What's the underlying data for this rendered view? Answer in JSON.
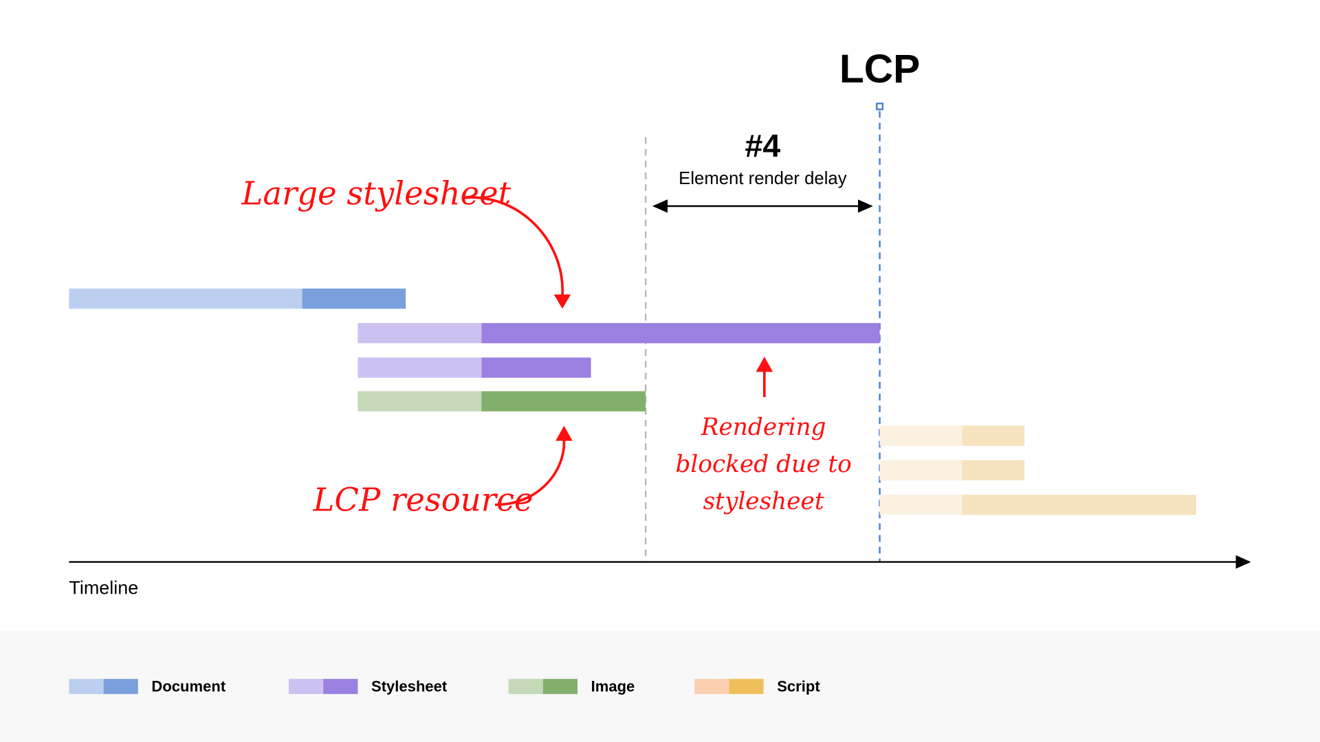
{
  "milestone": {
    "label": "LCP"
  },
  "phase": {
    "number": "#4",
    "label": "Element render delay"
  },
  "axis": {
    "label": "Timeline"
  },
  "annotations": {
    "large_stylesheet": "Large stylesheet",
    "lcp_resource": "LCP resource",
    "rendering_blocked": [
      "Rendering",
      "blocked due to",
      "stylesheet"
    ]
  },
  "legend": [
    {
      "label": "Document",
      "light": "#bccff0",
      "dark": "#79a0dc"
    },
    {
      "label": "Stylesheet",
      "light": "#ccc1f0",
      "dark": "#9a80e0"
    },
    {
      "label": "Image",
      "light": "#c5d9b8",
      "dark": "#82b06c"
    },
    {
      "label": "Script",
      "light": "#f9cfb0",
      "dark": "#eebf5a"
    }
  ],
  "colors": {
    "annotation": "#ff1010",
    "lcp_line": "#4a7fd6",
    "phase_line": "#b8b8b8",
    "script_faded_light": "#faf1e0",
    "script_faded_dark": "#f8e3c0"
  }
}
